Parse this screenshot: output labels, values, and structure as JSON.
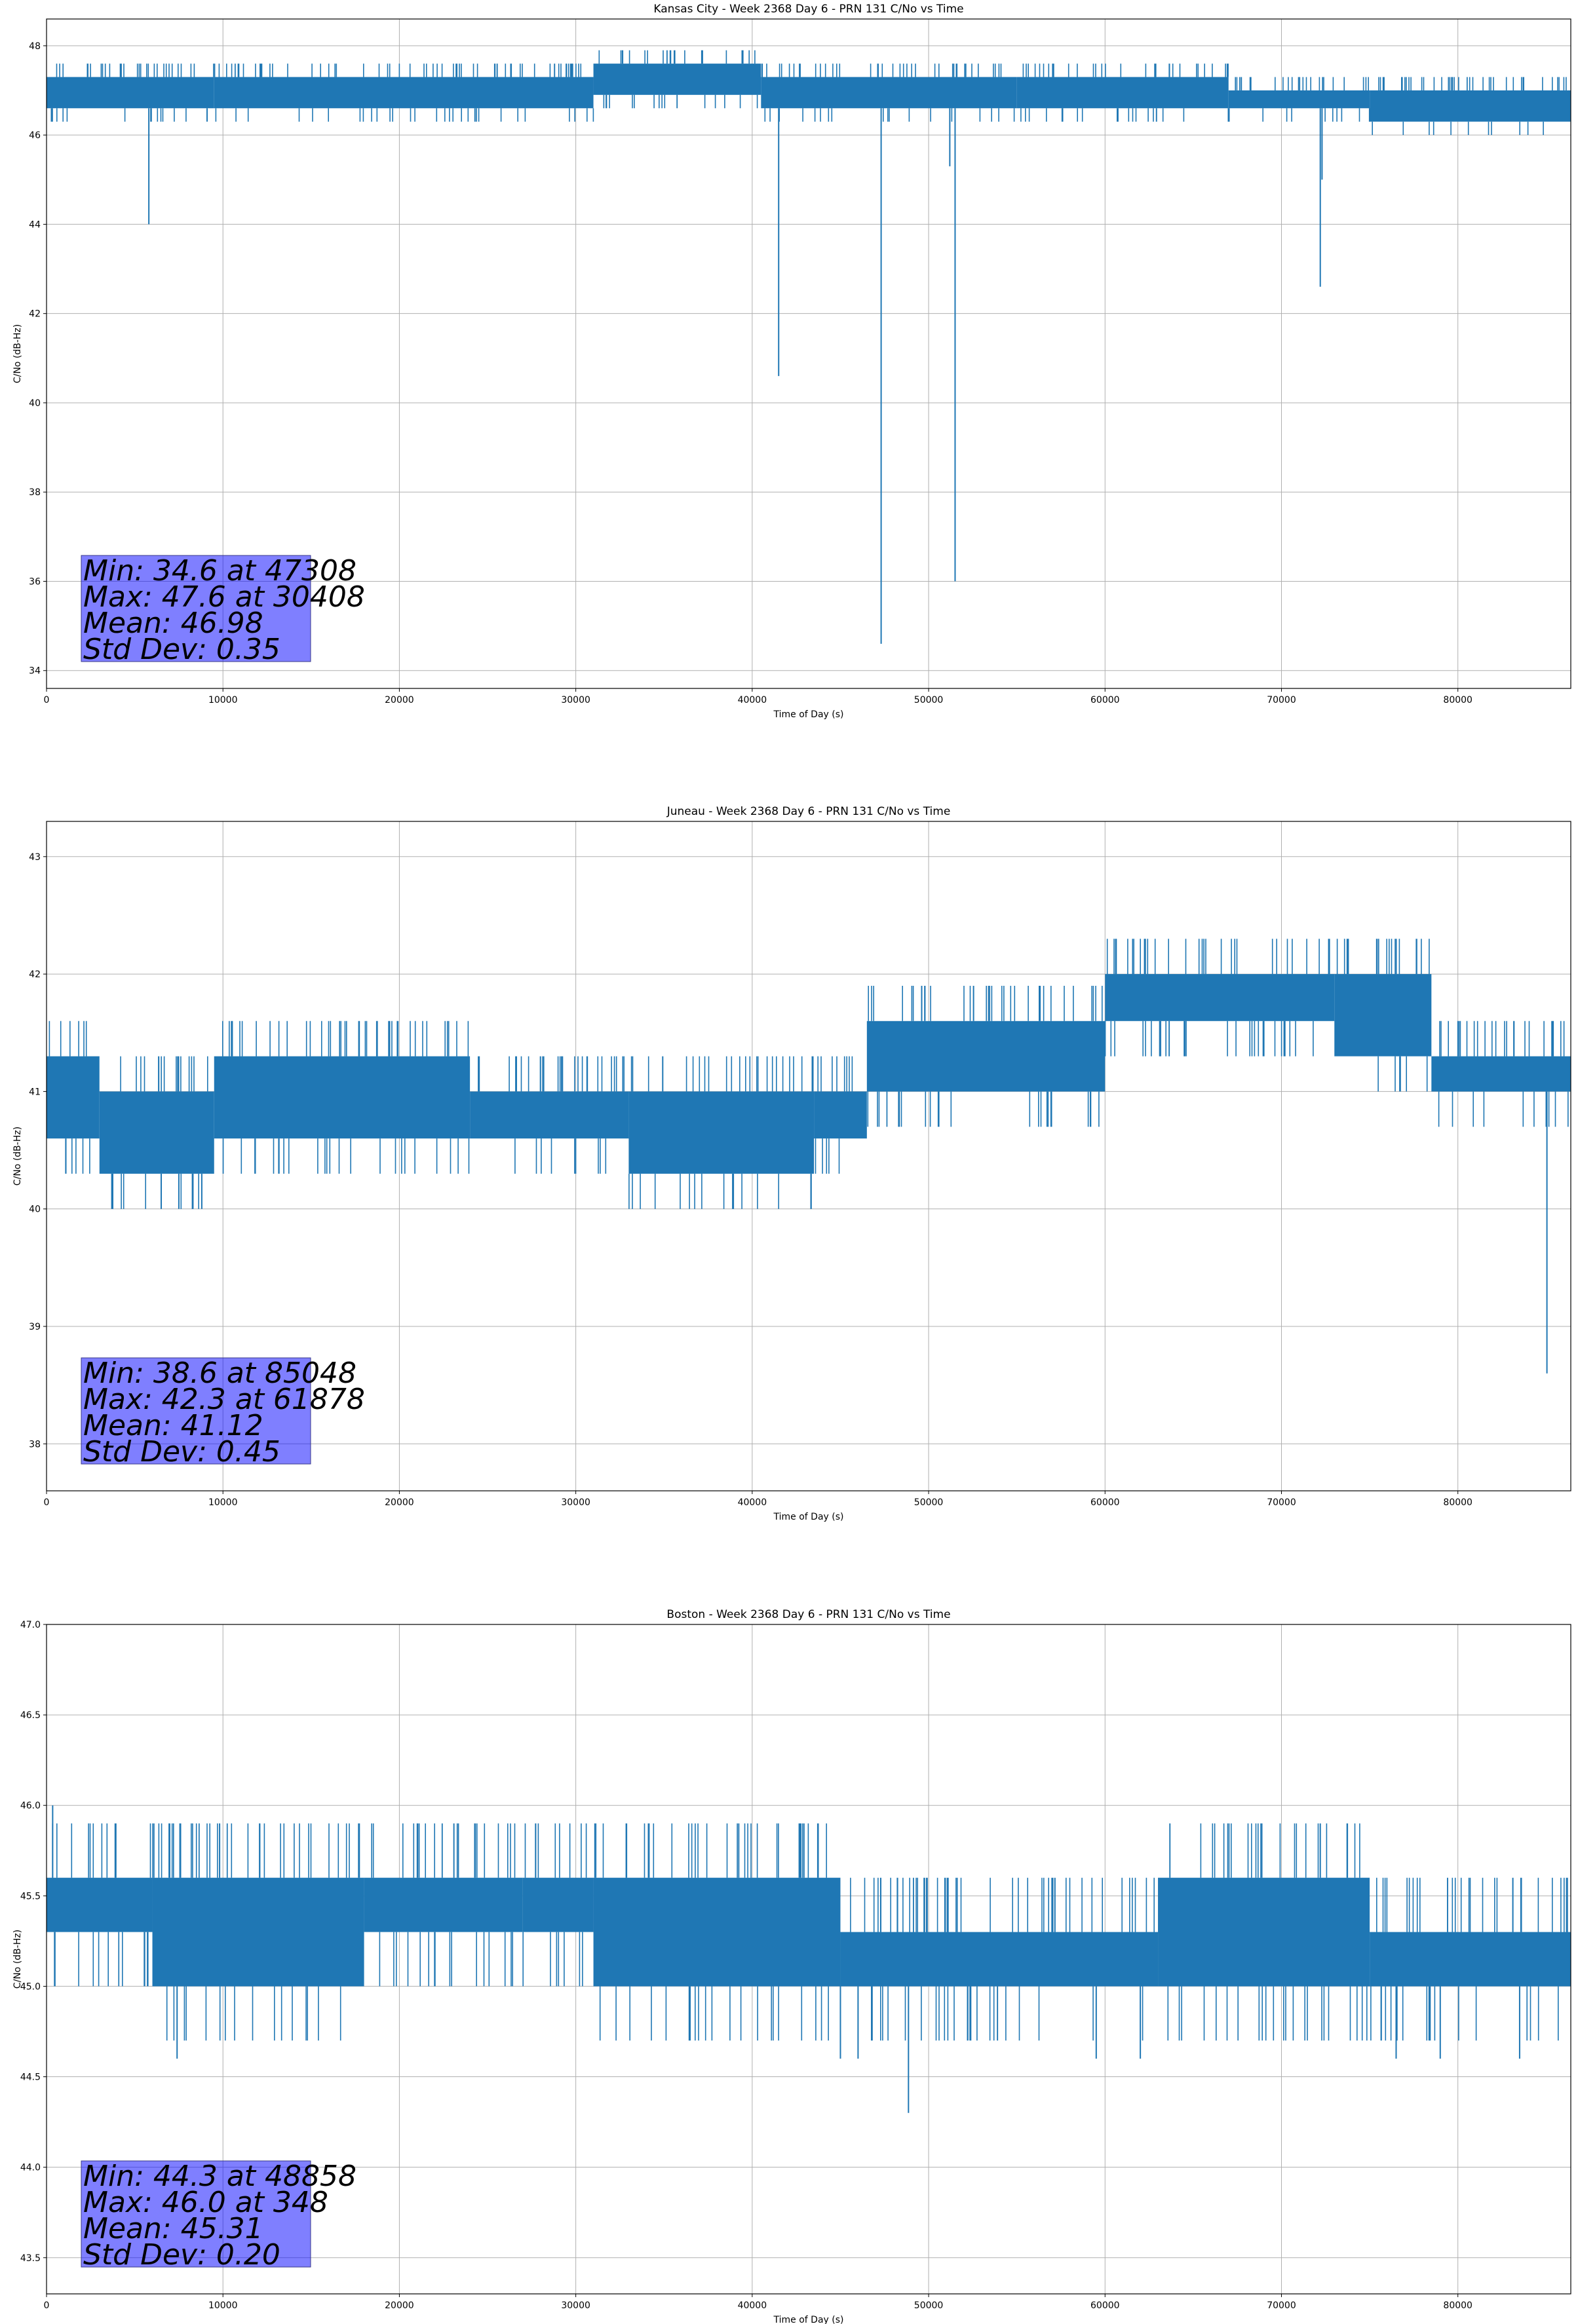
{
  "chart_data": [
    {
      "type": "line",
      "title": "Kansas City - Week 2368 Day 6 - PRN 131 C/No vs Time",
      "xlabel": "Time of Day (s)",
      "ylabel": "C/No (dB-Hz)",
      "xlim": [
        0,
        86400
      ],
      "ylim": [
        33.6,
        48.6
      ],
      "grid": true,
      "color": "#1f77b4",
      "xticks": [
        0,
        10000,
        20000,
        30000,
        40000,
        50000,
        60000,
        70000,
        80000
      ],
      "yticks": [
        34,
        36,
        38,
        40,
        42,
        44,
        46,
        48
      ],
      "ytick_labels": [
        "34",
        "36",
        "38",
        "40",
        "42",
        "44",
        "46",
        "48"
      ],
      "bands": [
        {
          "x0": 0,
          "x1": 9500,
          "lo": 46.6,
          "hi": 47.3
        },
        {
          "x0": 9500,
          "x1": 31000,
          "lo": 46.6,
          "hi": 47.3
        },
        {
          "x0": 31000,
          "x1": 40500,
          "lo": 46.9,
          "hi": 47.6
        },
        {
          "x0": 40500,
          "x1": 55000,
          "lo": 46.6,
          "hi": 47.3
        },
        {
          "x0": 55000,
          "x1": 67000,
          "lo": 46.6,
          "hi": 47.3
        },
        {
          "x0": 67000,
          "x1": 75000,
          "lo": 46.6,
          "hi": 47.0
        },
        {
          "x0": 75000,
          "x1": 86400,
          "lo": 46.3,
          "hi": 47.0
        }
      ],
      "spikes": [
        {
          "x": 5800,
          "y": 44.0
        },
        {
          "x": 9100,
          "y": 46.3
        },
        {
          "x": 41500,
          "y": 40.6
        },
        {
          "x": 47308,
          "y": 34.6
        },
        {
          "x": 51200,
          "y": 45.3
        },
        {
          "x": 51500,
          "y": 36.0
        },
        {
          "x": 72200,
          "y": 42.6
        },
        {
          "x": 72300,
          "y": 45.0
        }
      ],
      "stats": [
        "Min: 34.6 at 47308",
        "Max: 47.6 at 30408",
        "Mean: 46.98",
        "Std Dev: 0.35"
      ]
    },
    {
      "type": "line",
      "title": "Juneau - Week 2368 Day 6 - PRN 131 C/No vs Time",
      "xlabel": "Time of Day (s)",
      "ylabel": "C/No (dB-Hz)",
      "xlim": [
        0,
        86400
      ],
      "ylim": [
        37.6,
        43.3
      ],
      "grid": true,
      "color": "#1f77b4",
      "xticks": [
        0,
        10000,
        20000,
        30000,
        40000,
        50000,
        60000,
        70000,
        80000
      ],
      "yticks": [
        38,
        39,
        40,
        41,
        42,
        43
      ],
      "ytick_labels": [
        "38",
        "39",
        "40",
        "41",
        "42",
        "43"
      ],
      "bands": [
        {
          "x0": 0,
          "x1": 3000,
          "lo": 40.6,
          "hi": 41.3
        },
        {
          "x0": 3000,
          "x1": 9500,
          "lo": 40.3,
          "hi": 41.0
        },
        {
          "x0": 9500,
          "x1": 24000,
          "lo": 40.6,
          "hi": 41.3
        },
        {
          "x0": 24000,
          "x1": 33000,
          "lo": 40.6,
          "hi": 41.0
        },
        {
          "x0": 33000,
          "x1": 43500,
          "lo": 40.3,
          "hi": 41.0
        },
        {
          "x0": 43500,
          "x1": 46500,
          "lo": 40.6,
          "hi": 41.0
        },
        {
          "x0": 46500,
          "x1": 60000,
          "lo": 41.0,
          "hi": 41.6
        },
        {
          "x0": 60000,
          "x1": 73000,
          "lo": 41.6,
          "hi": 42.0
        },
        {
          "x0": 73000,
          "x1": 78500,
          "lo": 41.3,
          "hi": 42.0
        },
        {
          "x0": 78500,
          "x1": 86400,
          "lo": 41.0,
          "hi": 41.3
        }
      ],
      "spikes": [
        {
          "x": 3700,
          "y": 40.0
        },
        {
          "x": 6500,
          "y": 40.0
        },
        {
          "x": 7500,
          "y": 40.0
        },
        {
          "x": 8300,
          "y": 40.0
        },
        {
          "x": 8800,
          "y": 40.0
        },
        {
          "x": 85048,
          "y": 38.6
        }
      ],
      "stats": [
        "Min: 38.6 at 85048",
        "Max: 42.3 at 61878",
        "Mean: 41.12",
        "Std Dev: 0.45"
      ]
    },
    {
      "type": "line",
      "title": "Boston - Week 2368 Day 6 - PRN 131 C/No vs Time",
      "xlabel": "Time of Day (s)",
      "ylabel": "C/No (dB-Hz)",
      "xlim": [
        0,
        86400
      ],
      "ylim": [
        43.3,
        47.0
      ],
      "grid": true,
      "color": "#1f77b4",
      "xticks": [
        0,
        10000,
        20000,
        30000,
        40000,
        50000,
        60000,
        70000,
        80000
      ],
      "yticks": [
        43.5,
        44.0,
        44.5,
        45.0,
        45.5,
        46.0,
        46.5,
        47.0
      ],
      "ytick_labels": [
        "43.5",
        "44.0",
        "44.5",
        "45.0",
        "45.5",
        "46.0",
        "46.5",
        "47.0"
      ],
      "bands": [
        {
          "x0": 0,
          "x1": 6000,
          "lo": 45.3,
          "hi": 45.6
        },
        {
          "x0": 6000,
          "x1": 18000,
          "lo": 45.0,
          "hi": 45.6
        },
        {
          "x0": 18000,
          "x1": 27000,
          "lo": 45.3,
          "hi": 45.6
        },
        {
          "x0": 27000,
          "x1": 31000,
          "lo": 45.3,
          "hi": 45.6
        },
        {
          "x0": 31000,
          "x1": 45000,
          "lo": 45.0,
          "hi": 45.6
        },
        {
          "x0": 45000,
          "x1": 63000,
          "lo": 45.0,
          "hi": 45.3
        },
        {
          "x0": 63000,
          "x1": 75000,
          "lo": 45.0,
          "hi": 45.6
        },
        {
          "x0": 75000,
          "x1": 86400,
          "lo": 45.0,
          "hi": 45.3
        }
      ],
      "spikes": [
        {
          "x": 348,
          "y": 46.0
        },
        {
          "x": 7400,
          "y": 44.6
        },
        {
          "x": 45000,
          "y": 44.6
        },
        {
          "x": 46000,
          "y": 44.6
        },
        {
          "x": 48858,
          "y": 44.3
        },
        {
          "x": 59500,
          "y": 44.6
        },
        {
          "x": 62000,
          "y": 44.6
        },
        {
          "x": 76500,
          "y": 44.6
        },
        {
          "x": 79000,
          "y": 44.6
        },
        {
          "x": 83500,
          "y": 44.6
        }
      ],
      "stats": [
        "Min: 44.3 at 48858",
        "Max: 46.0 at 348",
        "Mean: 45.31",
        "Std Dev: 0.20"
      ]
    }
  ]
}
